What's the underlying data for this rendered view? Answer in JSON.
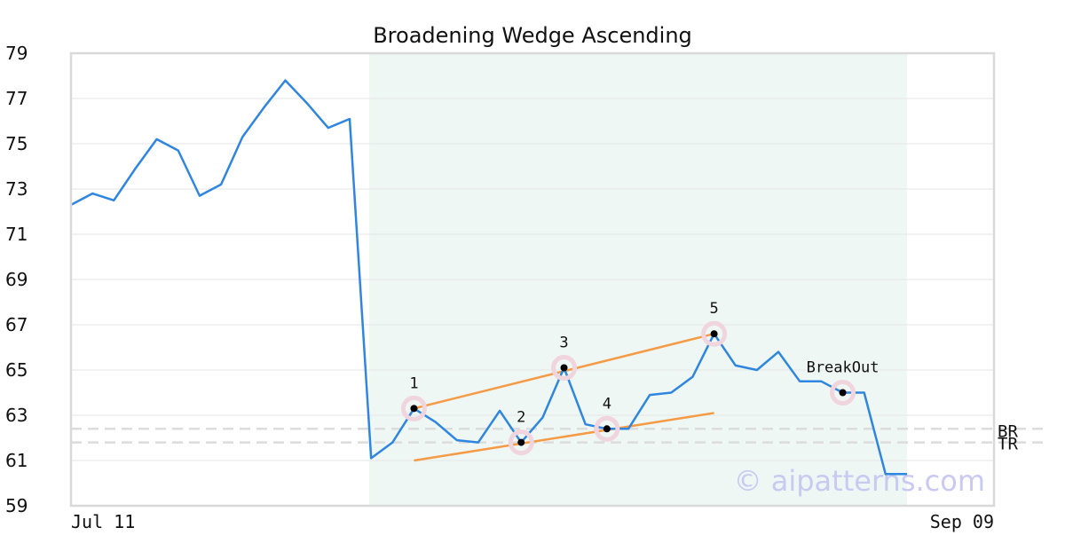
{
  "chart_data": {
    "type": "line",
    "title": "Broadening Wedge Ascending",
    "x_start_label": "Jul 11",
    "x_end_label": "Sep 09",
    "ylim": [
      59,
      79
    ],
    "yticks": [
      59,
      61,
      63,
      65,
      67,
      69,
      71,
      73,
      75,
      77,
      79
    ],
    "grid": true,
    "series": [
      {
        "color": "#2f86e0",
        "values": [
          72.3,
          72.8,
          72.5,
          73.9,
          75.2,
          74.7,
          72.7,
          73.2,
          75.3,
          76.6,
          77.8,
          76.8,
          75.7,
          76.1,
          61.1,
          61.8,
          63.3,
          62.7,
          61.9,
          61.8,
          63.2,
          61.8,
          62.9,
          65.1,
          62.6,
          62.4,
          62.4,
          63.9,
          64.0,
          64.7,
          66.6,
          65.2,
          65.0,
          65.8,
          64.5,
          64.5,
          64.0,
          64.0,
          60.4,
          60.4
        ]
      }
    ],
    "pattern_region": {
      "start_index": 14,
      "end_index": 39,
      "color": "#eef7f3"
    },
    "points": [
      {
        "label": "1",
        "index": 16,
        "value": 63.3
      },
      {
        "label": "2",
        "index": 21,
        "value": 61.8
      },
      {
        "label": "3",
        "index": 23,
        "value": 65.1
      },
      {
        "label": "4",
        "index": 25,
        "value": 62.4
      },
      {
        "label": "5",
        "index": 30,
        "value": 66.6
      },
      {
        "label": "BreakOut",
        "index": 36,
        "value": 64.0
      }
    ],
    "trendlines": [
      {
        "name": "upper",
        "from": {
          "index": 16,
          "value": 63.3
        },
        "to": {
          "index": 30,
          "value": 66.6
        },
        "color": "#f59a45"
      },
      {
        "name": "lower",
        "from": {
          "index": 16,
          "value": 61.0
        },
        "to": {
          "index": 30,
          "value": 63.1
        },
        "color": "#f59a45"
      }
    ],
    "reference_lines": [
      {
        "label": "BR",
        "value": 62.4
      },
      {
        "label": "TR",
        "value": 61.8
      }
    ],
    "watermark": "© aipatterns.com"
  }
}
